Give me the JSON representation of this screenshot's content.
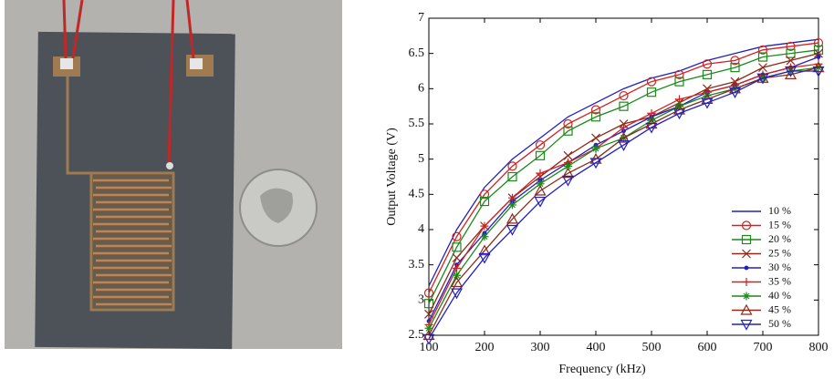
{
  "chart_data": {
    "type": "line",
    "x_label": "Frequency (kHz)",
    "y_label": "Output Voltage (V)",
    "x": [
      100,
      150,
      200,
      250,
      300,
      350,
      400,
      450,
      500,
      550,
      600,
      650,
      700,
      750,
      800
    ],
    "xlim": [
      100,
      800
    ],
    "xticks": [
      100,
      200,
      300,
      400,
      500,
      600,
      700,
      800
    ],
    "ylim": [
      2.5,
      7
    ],
    "yticks": [
      2.5,
      3,
      3.5,
      4,
      4.5,
      5,
      5.5,
      6,
      6.5,
      7
    ],
    "legend": "lower right",
    "series": [
      {
        "name": "10 %",
        "color": "#2020c0",
        "marker": "none",
        "values": [
          3.2,
          4.0,
          4.6,
          5.0,
          5.3,
          5.6,
          5.8,
          6.0,
          6.15,
          6.25,
          6.4,
          6.5,
          6.6,
          6.65,
          6.7
        ]
      },
      {
        "name": "15 %",
        "color": "#d42020",
        "marker": "circle",
        "values": [
          3.1,
          3.9,
          4.5,
          4.9,
          5.2,
          5.5,
          5.7,
          5.9,
          6.1,
          6.2,
          6.35,
          6.4,
          6.55,
          6.6,
          6.65
        ]
      },
      {
        "name": "20 %",
        "color": "#1a8a1a",
        "marker": "square",
        "values": [
          2.95,
          3.75,
          4.4,
          4.75,
          5.05,
          5.4,
          5.6,
          5.75,
          5.95,
          6.1,
          6.2,
          6.3,
          6.45,
          6.5,
          6.55
        ]
      },
      {
        "name": "25 %",
        "color": "#8b2a1a",
        "marker": "x",
        "values": [
          2.8,
          3.6,
          4.05,
          4.45,
          4.75,
          5.05,
          5.3,
          5.5,
          5.6,
          5.8,
          6.0,
          6.1,
          6.3,
          6.4,
          6.5
        ]
      },
      {
        "name": "30 %",
        "color": "#2020c0",
        "marker": "dot",
        "values": [
          2.7,
          3.5,
          3.95,
          4.4,
          4.7,
          4.95,
          5.2,
          5.4,
          5.6,
          5.75,
          5.95,
          6.05,
          6.2,
          6.3,
          6.45
        ]
      },
      {
        "name": "35 %",
        "color": "#d42020",
        "marker": "plus",
        "values": [
          2.65,
          3.45,
          4.05,
          4.45,
          4.8,
          4.95,
          5.15,
          5.45,
          5.65,
          5.85,
          5.95,
          6.05,
          6.2,
          6.3,
          6.35
        ]
      },
      {
        "name": "40 %",
        "color": "#1a8a1a",
        "marker": "star",
        "values": [
          2.6,
          3.35,
          3.9,
          4.35,
          4.65,
          4.9,
          5.15,
          5.3,
          5.55,
          5.75,
          5.9,
          6.0,
          6.15,
          6.25,
          6.3
        ]
      },
      {
        "name": "45 %",
        "color": "#8b2a1a",
        "marker": "triangle",
        "values": [
          2.5,
          3.25,
          3.7,
          4.15,
          4.55,
          4.8,
          5.0,
          5.3,
          5.5,
          5.7,
          5.85,
          6.0,
          6.15,
          6.2,
          6.3
        ]
      },
      {
        "name": "50 %",
        "color": "#2020c0",
        "marker": "triangle-down",
        "values": [
          2.45,
          3.1,
          3.6,
          4.0,
          4.4,
          4.7,
          4.95,
          5.2,
          5.45,
          5.65,
          5.8,
          5.95,
          6.15,
          6.25,
          6.25
        ]
      }
    ]
  }
}
